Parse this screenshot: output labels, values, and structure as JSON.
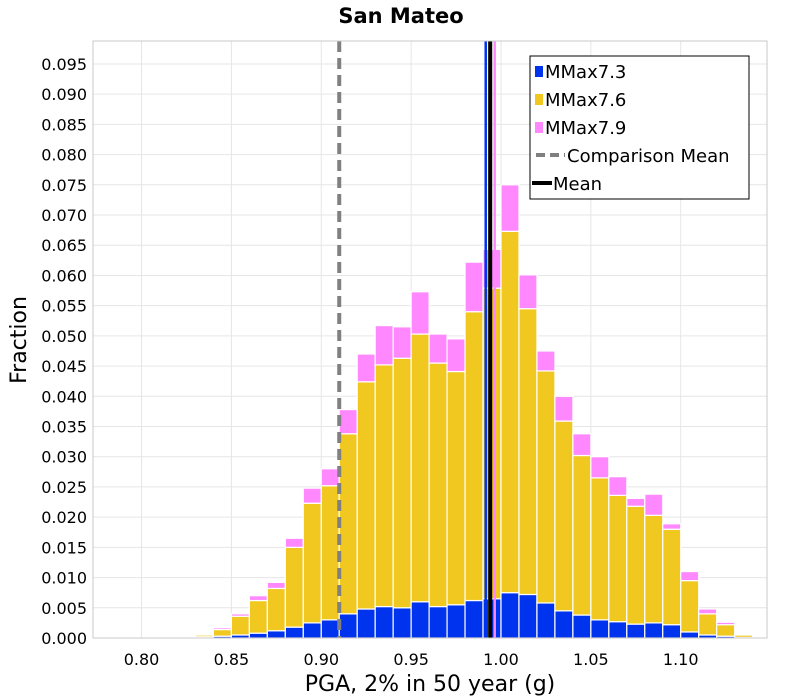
{
  "chart_data": {
    "type": "bar",
    "stacked": true,
    "title": "San Mateo",
    "xlabel": "PGA, 2% in 50 year (g)",
    "ylabel": "Fraction",
    "xlim": [
      0.773,
      1.148
    ],
    "ylim": [
      0,
      0.0988
    ],
    "xticks": [
      0.8,
      0.85,
      0.9,
      0.95,
      1.0,
      1.05,
      1.1
    ],
    "xtick_labels": [
      "0.80",
      "0.85",
      "0.90",
      "0.95",
      "1.00",
      "1.05",
      "1.10"
    ],
    "yticks": [
      0,
      0.005,
      0.01,
      0.015,
      0.02,
      0.025,
      0.03,
      0.035,
      0.04,
      0.045,
      0.05,
      0.055,
      0.06,
      0.065,
      0.07,
      0.075,
      0.08,
      0.085,
      0.09,
      0.095
    ],
    "ytick_labels": [
      "0.000",
      "0.005",
      "0.010",
      "0.015",
      "0.020",
      "0.025",
      "0.030",
      "0.035",
      "0.040",
      "0.045",
      "0.050",
      "0.055",
      "0.060",
      "0.065",
      "0.070",
      "0.075",
      "0.080",
      "0.085",
      "0.090",
      "0.095"
    ],
    "grid": true,
    "legend_position": "top-right",
    "bin_width": 0.01,
    "x": [
      0.835,
      0.845,
      0.855,
      0.865,
      0.875,
      0.885,
      0.895,
      0.905,
      0.915,
      0.925,
      0.935,
      0.945,
      0.955,
      0.965,
      0.975,
      0.985,
      0.995,
      1.005,
      1.015,
      1.025,
      1.035,
      1.045,
      1.055,
      1.065,
      1.075,
      1.085,
      1.095,
      1.105,
      1.115,
      1.125,
      1.135
    ],
    "series": [
      {
        "name": "MMax7.3",
        "color": "#0033ee",
        "values": [
          0.0002,
          0.0003,
          0.0005,
          0.0008,
          0.0012,
          0.0018,
          0.0025,
          0.003,
          0.004,
          0.0048,
          0.0052,
          0.005,
          0.006,
          0.0052,
          0.0055,
          0.0062,
          0.0065,
          0.0075,
          0.0072,
          0.0058,
          0.0045,
          0.0038,
          0.003,
          0.0027,
          0.0023,
          0.0025,
          0.0022,
          0.001,
          0.0005,
          0.0003,
          0.0001
        ]
      },
      {
        "name": "MMax7.6",
        "color": "#f0c820",
        "values": [
          0.0003,
          0.0011,
          0.0031,
          0.0054,
          0.007,
          0.0132,
          0.0198,
          0.0222,
          0.0298,
          0.0376,
          0.04,
          0.0413,
          0.0443,
          0.0403,
          0.0386,
          0.0478,
          0.0514,
          0.0598,
          0.0473,
          0.0384,
          0.0314,
          0.0264,
          0.0235,
          0.0209,
          0.0195,
          0.0178,
          0.0158,
          0.0085,
          0.0035,
          0.0019,
          0.0004
        ]
      },
      {
        "name": "MMax7.9",
        "color": "#ff88ff",
        "values": [
          0.0001,
          0.0003,
          0.0004,
          0.0008,
          0.001,
          0.0015,
          0.0025,
          0.0028,
          0.004,
          0.0046,
          0.0065,
          0.0052,
          0.007,
          0.0048,
          0.0054,
          0.0082,
          0.0064,
          0.0077,
          0.0056,
          0.0033,
          0.0041,
          0.0036,
          0.0035,
          0.0031,
          0.0013,
          0.0035,
          0.0009,
          0.0015,
          0.0008,
          0.0004,
          0.0001
        ]
      }
    ],
    "lines": [
      {
        "name": "Comparison Mean",
        "x": 0.91,
        "color": "#808080",
        "style": "dashed"
      },
      {
        "name": "Mean",
        "x": 0.994,
        "color": "#000000",
        "style": "solid"
      }
    ],
    "extra_vlines": [
      {
        "x": 0.9915,
        "color": "#0033ee"
      },
      {
        "x": 0.9935,
        "color": "#f0c820"
      },
      {
        "x": 0.9965,
        "color": "#ff88ff"
      }
    ]
  }
}
